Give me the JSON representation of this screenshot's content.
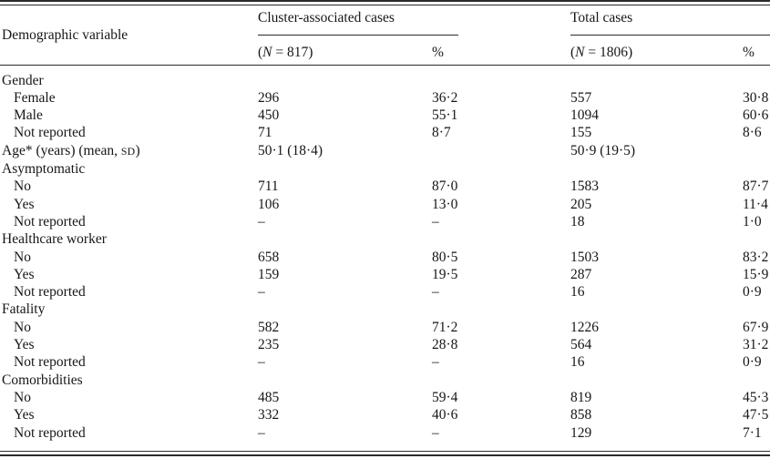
{
  "colors": {
    "background": "#ffffff",
    "text": "#161616",
    "rule": "#2b2b2b"
  },
  "table": {
    "corner_header": "Demographic variable",
    "groups": [
      {
        "label": "Cluster-associated cases",
        "n": "({i:N} = 817)",
        "pct": "%"
      },
      {
        "label": "Total cases",
        "n": "({i:N} = 1806)",
        "pct": "%"
      }
    ],
    "rows": [
      {
        "label": "Gender",
        "indent": false,
        "cells": [
          "",
          "",
          "",
          ""
        ]
      },
      {
        "label": "Female",
        "indent": true,
        "cells": [
          "296",
          "36·2",
          "557",
          "30·8"
        ]
      },
      {
        "label": "Male",
        "indent": true,
        "cells": [
          "450",
          "55·1",
          "1094",
          "60·6"
        ]
      },
      {
        "label": "Not reported",
        "indent": true,
        "cells": [
          "71",
          "8·7",
          "155",
          "8·6"
        ]
      },
      {
        "label": "Age* (years) (mean, {sc:sd})",
        "indent": false,
        "cells": [
          "50·1 (18·4)",
          "",
          "50·9 (19·5)",
          ""
        ]
      },
      {
        "label": "Asymptomatic",
        "indent": false,
        "cells": [
          "",
          "",
          "",
          ""
        ]
      },
      {
        "label": "No",
        "indent": true,
        "cells": [
          "711",
          "87·0",
          "1583",
          "87·7"
        ]
      },
      {
        "label": "Yes",
        "indent": true,
        "cells": [
          "106",
          "13·0",
          "205",
          "11·4"
        ]
      },
      {
        "label": "Not reported",
        "indent": true,
        "cells": [
          "–",
          "–",
          "18",
          "1·0"
        ]
      },
      {
        "label": "Healthcare worker",
        "indent": false,
        "cells": [
          "",
          "",
          "",
          ""
        ]
      },
      {
        "label": "No",
        "indent": true,
        "cells": [
          "658",
          "80·5",
          "1503",
          "83·2"
        ]
      },
      {
        "label": "Yes",
        "indent": true,
        "cells": [
          "159",
          "19·5",
          "287",
          "15·9"
        ]
      },
      {
        "label": "Not reported",
        "indent": true,
        "cells": [
          "–",
          "–",
          "16",
          "0·9"
        ]
      },
      {
        "label": "Fatality",
        "indent": false,
        "cells": [
          "",
          "",
          "",
          ""
        ]
      },
      {
        "label": "No",
        "indent": true,
        "cells": [
          "582",
          "71·2",
          "1226",
          "67·9"
        ]
      },
      {
        "label": "Yes",
        "indent": true,
        "cells": [
          "235",
          "28·8",
          "564",
          "31·2"
        ]
      },
      {
        "label": "Not reported",
        "indent": true,
        "cells": [
          "–",
          "–",
          "16",
          "0·9"
        ]
      },
      {
        "label": "Comorbidities",
        "indent": false,
        "cells": [
          "",
          "",
          "",
          ""
        ]
      },
      {
        "label": "No",
        "indent": true,
        "cells": [
          "485",
          "59·4",
          "819",
          "45·3"
        ]
      },
      {
        "label": "Yes",
        "indent": true,
        "cells": [
          "332",
          "40·6",
          "858",
          "47·5"
        ]
      },
      {
        "label": "Not reported",
        "indent": true,
        "cells": [
          "–",
          "–",
          "129",
          "7·1"
        ]
      }
    ]
  }
}
